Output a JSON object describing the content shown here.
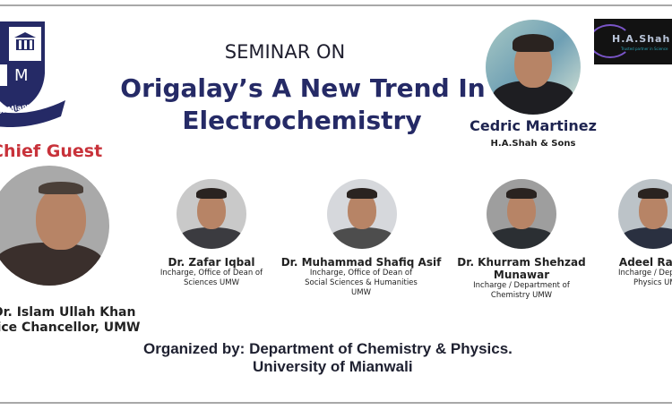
{
  "logo": {
    "ribbon_text": "University of Mianwali",
    "letter": "M",
    "colors": {
      "navy": "#252a66"
    }
  },
  "header": {
    "kicker": "SEMINAR ON",
    "title_line1": "Origalay’s A New Trend In",
    "title_line2": "Electrochemistry"
  },
  "speaker": {
    "name": "Cedric Martinez",
    "affiliation": "H.A.Shah & Sons"
  },
  "sponsor_logo": {
    "text": "H.A.Shah",
    "tagline": "Trusted partner in Science"
  },
  "chief_guest": {
    "label": "Chief Guest",
    "name": "Dr. Islam Ullah Khan",
    "title": "Vice Chancellor, UMW",
    "label_color": "#c8323a"
  },
  "panel": [
    {
      "name": "Dr. Zafar Iqbal",
      "lines": [
        "Incharge, Office of Dean of",
        "Sciences UMW"
      ]
    },
    {
      "name": "Dr. Muhammad Shafiq Asif",
      "lines": [
        "Incharge, Office of Dean of",
        "Social Sciences & Humanities",
        "UMW"
      ]
    },
    {
      "name": "Dr. Khurram Shehzad",
      "name2": "Munawar",
      "lines": [
        "Incharge  / Department of",
        "Chemistry UMW"
      ]
    },
    {
      "name": "Adeel Rashid",
      "lines": [
        "Incharge  / Department of",
        "Physics  UMW"
      ]
    }
  ],
  "footer": {
    "line1": "Organized by: Department of Chemistry & Physics.",
    "line2": "University of Mianwali"
  }
}
